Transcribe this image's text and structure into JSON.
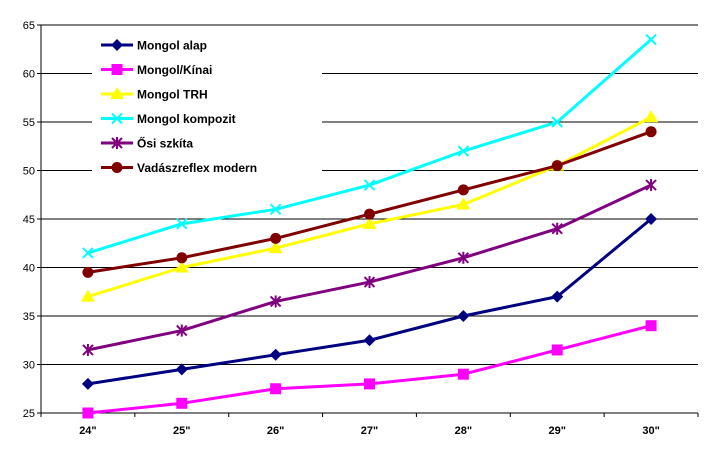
{
  "chart_data": {
    "type": "line",
    "title": "",
    "xlabel": "",
    "ylabel": "",
    "categories": [
      "24\"",
      "25\"",
      "26\"",
      "27\"",
      "28\"",
      "29\"",
      "30\""
    ],
    "yticks": [
      "25",
      "30",
      "35",
      "40",
      "45",
      "50",
      "55",
      "60",
      "65"
    ],
    "ylim": [
      25,
      65
    ],
    "grid": "horizontal",
    "legend_position": "top-left",
    "series": [
      {
        "name": "Mongol alap",
        "color": "#000080",
        "marker": "diamond",
        "values": [
          28,
          29.5,
          31,
          32.5,
          35,
          37,
          45
        ]
      },
      {
        "name": "Mongol/Kínai",
        "color": "#ff00ff",
        "marker": "square",
        "values": [
          25,
          26,
          27.5,
          28,
          29,
          31.5,
          34
        ]
      },
      {
        "name": "Mongol TRH",
        "color": "#ffff00",
        "marker": "triangle",
        "values": [
          37,
          40,
          42,
          44.5,
          46.5,
          50.5,
          55.5
        ]
      },
      {
        "name": "Mongol kompozit",
        "color": "#00ffff",
        "marker": "x",
        "values": [
          41.5,
          44.5,
          46,
          48.5,
          52,
          55,
          63.5
        ]
      },
      {
        "name": "Ősi szkíta",
        "color": "#800080",
        "marker": "star",
        "values": [
          31.5,
          33.5,
          36.5,
          38.5,
          41,
          44,
          48.5
        ]
      },
      {
        "name": "Vadászreflex modern",
        "color": "#800000",
        "marker": "circle",
        "values": [
          39.5,
          41,
          43,
          45.5,
          48,
          50.5,
          54
        ]
      }
    ]
  }
}
